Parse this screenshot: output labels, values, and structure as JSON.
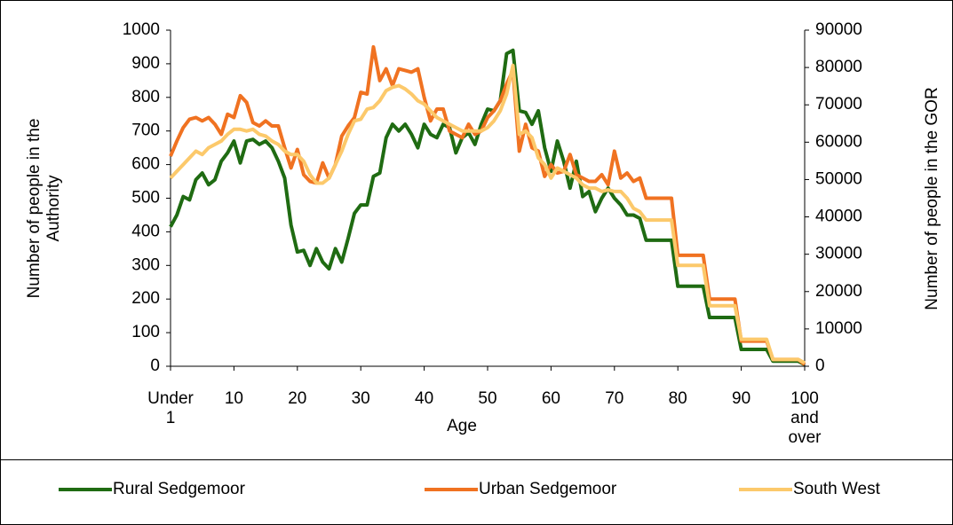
{
  "chart_data": {
    "type": "line",
    "xlabel": "Age",
    "ylabel": "Number of people in the Authority",
    "y2label": "Number of people in the GOR",
    "categories": [
      "Under 1",
      null,
      null,
      null,
      null,
      null,
      null,
      null,
      null,
      null,
      "10",
      null,
      null,
      null,
      null,
      null,
      null,
      null,
      null,
      null,
      "20",
      null,
      null,
      null,
      null,
      null,
      null,
      null,
      null,
      null,
      "30",
      null,
      null,
      null,
      null,
      null,
      null,
      null,
      null,
      null,
      "40",
      null,
      null,
      null,
      null,
      null,
      null,
      null,
      null,
      null,
      "50",
      null,
      null,
      null,
      null,
      null,
      null,
      null,
      null,
      null,
      "60",
      null,
      null,
      null,
      null,
      null,
      null,
      null,
      null,
      null,
      "70",
      null,
      null,
      null,
      null,
      null,
      null,
      null,
      null,
      null,
      "80",
      null,
      null,
      null,
      null,
      null,
      null,
      null,
      null,
      null,
      "90",
      null,
      null,
      null,
      null,
      null,
      null,
      null,
      null,
      null,
      "100 and over"
    ],
    "ylim": [
      0,
      1000
    ],
    "yticks": [
      0,
      100,
      200,
      300,
      400,
      500,
      600,
      700,
      800,
      900,
      1000
    ],
    "y2lim": [
      0,
      90000
    ],
    "y2ticks": [
      0,
      10000,
      20000,
      30000,
      40000,
      50000,
      60000,
      70000,
      80000,
      90000
    ],
    "grid": false,
    "legend": "bottom",
    "series": [
      {
        "name": "Rural Sedgemoor",
        "color": "#1f6b12",
        "values": [
          415,
          450,
          505,
          495,
          555,
          575,
          540,
          555,
          610,
          635,
          670,
          605,
          670,
          675,
          660,
          670,
          650,
          610,
          560,
          420,
          340,
          345,
          300,
          350,
          310,
          290,
          350,
          310,
          380,
          455,
          480,
          480,
          565,
          575,
          680,
          720,
          700,
          720,
          690,
          650,
          720,
          690,
          680,
          720,
          710,
          635,
          680,
          695,
          660,
          720,
          765,
          760,
          790,
          930,
          940,
          760,
          755,
          720,
          760,
          650,
          580,
          670,
          610,
          530,
          610,
          505,
          520,
          460,
          500,
          530,
          500,
          480,
          450,
          450,
          440,
          375,
          375,
          375,
          375,
          375,
          238,
          238,
          238,
          238,
          238,
          145,
          145,
          145,
          145,
          145,
          50,
          50,
          50,
          50,
          50,
          15,
          15,
          15,
          15,
          15,
          5
        ]
      },
      {
        "name": "Urban Sedgemoor",
        "color": "#f07221",
        "values": [
          625,
          670,
          710,
          735,
          740,
          730,
          740,
          720,
          690,
          750,
          740,
          805,
          785,
          725,
          715,
          730,
          715,
          715,
          650,
          590,
          645,
          570,
          550,
          545,
          605,
          560,
          600,
          685,
          715,
          740,
          815,
          810,
          950,
          850,
          885,
          835,
          885,
          880,
          875,
          885,
          800,
          730,
          765,
          765,
          700,
          690,
          680,
          720,
          690,
          700,
          740,
          760,
          790,
          840,
          880,
          640,
          720,
          650,
          640,
          565,
          600,
          575,
          580,
          630,
          570,
          560,
          550,
          550,
          570,
          540,
          640,
          560,
          575,
          550,
          560,
          500,
          500,
          500,
          500,
          500,
          330,
          330,
          330,
          330,
          330,
          200,
          200,
          200,
          200,
          200,
          75,
          75,
          75,
          75,
          75,
          20,
          20,
          20,
          20,
          20,
          5
        ]
      },
      {
        "name": "South West",
        "color": "#fcc96b",
        "axis": "y2",
        "values": [
          50400,
          52200,
          54000,
          55800,
          57600,
          56700,
          58500,
          59400,
          60300,
          62100,
          63450,
          63450,
          63000,
          63450,
          62100,
          61650,
          60300,
          59400,
          57600,
          56700,
          56700,
          54900,
          51300,
          49050,
          49050,
          50400,
          54000,
          57600,
          62100,
          65700,
          66150,
          68850,
          69300,
          71100,
          73800,
          74700,
          75150,
          74250,
          72900,
          71100,
          70200,
          68400,
          66600,
          65700,
          64800,
          63900,
          63000,
          63000,
          63000,
          63000,
          63900,
          65700,
          68400,
          72900,
          80550,
          62100,
          63000,
          61200,
          55800,
          54000,
          50400,
          53100,
          52200,
          51300,
          50400,
          48600,
          47700,
          47700,
          46800,
          47250,
          46800,
          46800,
          45000,
          42300,
          41400,
          39150,
          39150,
          39150,
          39150,
          39150,
          27000,
          27000,
          27000,
          27000,
          27000,
          16200,
          16200,
          16200,
          16200,
          16200,
          7200,
          7200,
          7200,
          7200,
          7200,
          1800,
          1800,
          1800,
          1800,
          1800,
          900
        ]
      }
    ]
  }
}
